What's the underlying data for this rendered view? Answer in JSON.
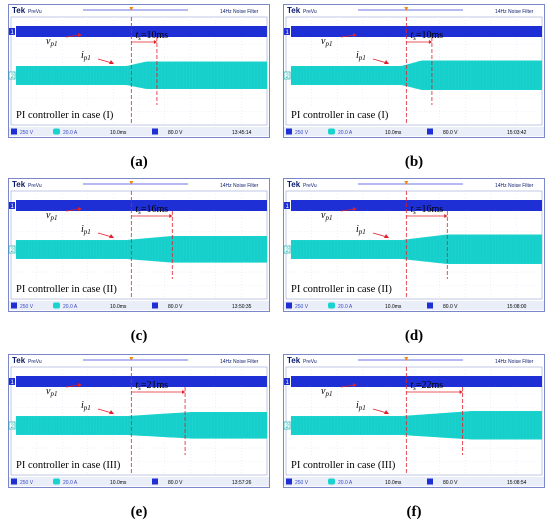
{
  "scope_ui": {
    "brand": "Tek",
    "mode": "PreVu",
    "filter_label": "14Hz Noise Filter",
    "ch1_marker": "1",
    "ch2_marker": "2"
  },
  "colors": {
    "voltage_trace": "#1f2fd6",
    "current_trace": "#19d3cf",
    "current_trace_dark": "#0fb2ae",
    "cursor": "#e0202a",
    "status_bg": "#e9eef9",
    "status_text": "#3949c7",
    "border": "#7a88c9"
  },
  "panels": [
    {
      "id": "a",
      "caption": "(a)",
      "title": "PI controller in case (I)",
      "label_vp": "v",
      "label_vp_sub": "p1",
      "label_ip": "i",
      "label_ip_sub": "p1",
      "ts_prefix": "t",
      "ts_sub": "s",
      "ts_value": "=10ms",
      "status": {
        "ch1_scale": "250 V",
        "ch2_scale": "20.0 A",
        "timebase": "10.0ms",
        "trigger": "80.0 V",
        "clock": "13:45:14"
      },
      "chart_data": {
        "type": "line",
        "series": [
          {
            "name": "v",
            "kind": "dense",
            "x": [
              0,
              100
            ],
            "y": [
              1,
              1
            ]
          },
          {
            "name": "i",
            "kind": "envelope",
            "x": [
              0,
              44,
              52,
              55,
              100
            ],
            "y": [
              1,
              1,
              1.45,
              1.45,
              1.45
            ]
          }
        ],
        "settling_time_ms": 10
      }
    },
    {
      "id": "b",
      "caption": "(b)",
      "title": "PI controller in case (I)",
      "label_vp": "v",
      "label_vp_sub": "p1",
      "label_ip": "i",
      "label_ip_sub": "p1",
      "ts_prefix": "t",
      "ts_sub": "s",
      "ts_value": "=10ms",
      "status": {
        "ch1_scale": "250 V",
        "ch2_scale": "20.0 A",
        "timebase": "10.0ms",
        "trigger": "80.0 V",
        "clock": "15:03:42"
      },
      "chart_data": {
        "type": "line",
        "series": [
          {
            "name": "v",
            "kind": "dense",
            "x": [
              0,
              100
            ],
            "y": [
              1,
              1
            ]
          },
          {
            "name": "i",
            "kind": "envelope",
            "x": [
              0,
              44,
              52,
              55,
              100
            ],
            "y": [
              1,
              1,
              1.55,
              1.55,
              1.55
            ]
          }
        ],
        "settling_time_ms": 10
      }
    },
    {
      "id": "c",
      "caption": "(c)",
      "title": "PI controller in case (II)",
      "label_vp": "v",
      "label_vp_sub": "p1",
      "label_ip": "i",
      "label_ip_sub": "p1",
      "ts_prefix": "t",
      "ts_sub": "s",
      "ts_value": "=16ms",
      "status": {
        "ch1_scale": "250 V",
        "ch2_scale": "20.0 A",
        "timebase": "10.0ms",
        "trigger": "80.0 V",
        "clock": "13:50:35"
      },
      "chart_data": {
        "type": "line",
        "series": [
          {
            "name": "v",
            "kind": "dense",
            "x": [
              0,
              100
            ],
            "y": [
              1,
              1
            ]
          },
          {
            "name": "i",
            "kind": "envelope",
            "x": [
              0,
              44,
              62,
              100
            ],
            "y": [
              1,
              1,
              1.4,
              1.4
            ]
          }
        ],
        "settling_time_ms": 16
      }
    },
    {
      "id": "d",
      "caption": "(d)",
      "title": "PI controller in case (II)",
      "label_vp": "v",
      "label_vp_sub": "p1",
      "label_ip": "i",
      "label_ip_sub": "p1",
      "ts_prefix": "t",
      "ts_sub": "s",
      "ts_value": "=16ms",
      "status": {
        "ch1_scale": "250 V",
        "ch2_scale": "20.0 A",
        "timebase": "10.0ms",
        "trigger": "80.0 V",
        "clock": "15:08:00"
      },
      "chart_data": {
        "type": "line",
        "series": [
          {
            "name": "v",
            "kind": "dense",
            "x": [
              0,
              100
            ],
            "y": [
              1,
              1
            ]
          },
          {
            "name": "i",
            "kind": "envelope",
            "x": [
              0,
              44,
              62,
              100
            ],
            "y": [
              1,
              1,
              1.55,
              1.55
            ]
          }
        ],
        "settling_time_ms": 16
      }
    },
    {
      "id": "e",
      "caption": "(e)",
      "title": "PI controller in case (III)",
      "label_vp": "v",
      "label_vp_sub": "p1",
      "label_ip": "i",
      "label_ip_sub": "p1",
      "ts_prefix": "t",
      "ts_sub": "s",
      "ts_value": "=21ms",
      "status": {
        "ch1_scale": "250 V",
        "ch2_scale": "20.0 A",
        "timebase": "10.0ms",
        "trigger": "80.0 V",
        "clock": "13:57:26"
      },
      "chart_data": {
        "type": "line",
        "series": [
          {
            "name": "v",
            "kind": "dense",
            "x": [
              0,
              100
            ],
            "y": [
              1,
              1
            ]
          },
          {
            "name": "i",
            "kind": "envelope",
            "x": [
              0,
              44,
              70,
              100
            ],
            "y": [
              1,
              1,
              1.4,
              1.4
            ]
          }
        ],
        "settling_time_ms": 21
      }
    },
    {
      "id": "f",
      "caption": "(f)",
      "title": "PI controller in case (III)",
      "label_vp": "v",
      "label_vp_sub": "p1",
      "label_ip": "i",
      "label_ip_sub": "p1",
      "ts_prefix": "t",
      "ts_sub": "s",
      "ts_value": "=22ms",
      "status": {
        "ch1_scale": "250 V",
        "ch2_scale": "20.0 A",
        "timebase": "10.0ms",
        "trigger": "80.0 V",
        "clock": "15:08:54"
      },
      "chart_data": {
        "type": "line",
        "series": [
          {
            "name": "v",
            "kind": "dense",
            "x": [
              0,
              100
            ],
            "y": [
              1,
              1
            ]
          },
          {
            "name": "i",
            "kind": "envelope",
            "x": [
              0,
              44,
              72,
              100
            ],
            "y": [
              1,
              1,
              1.5,
              1.5
            ]
          }
        ],
        "settling_time_ms": 22
      }
    }
  ]
}
